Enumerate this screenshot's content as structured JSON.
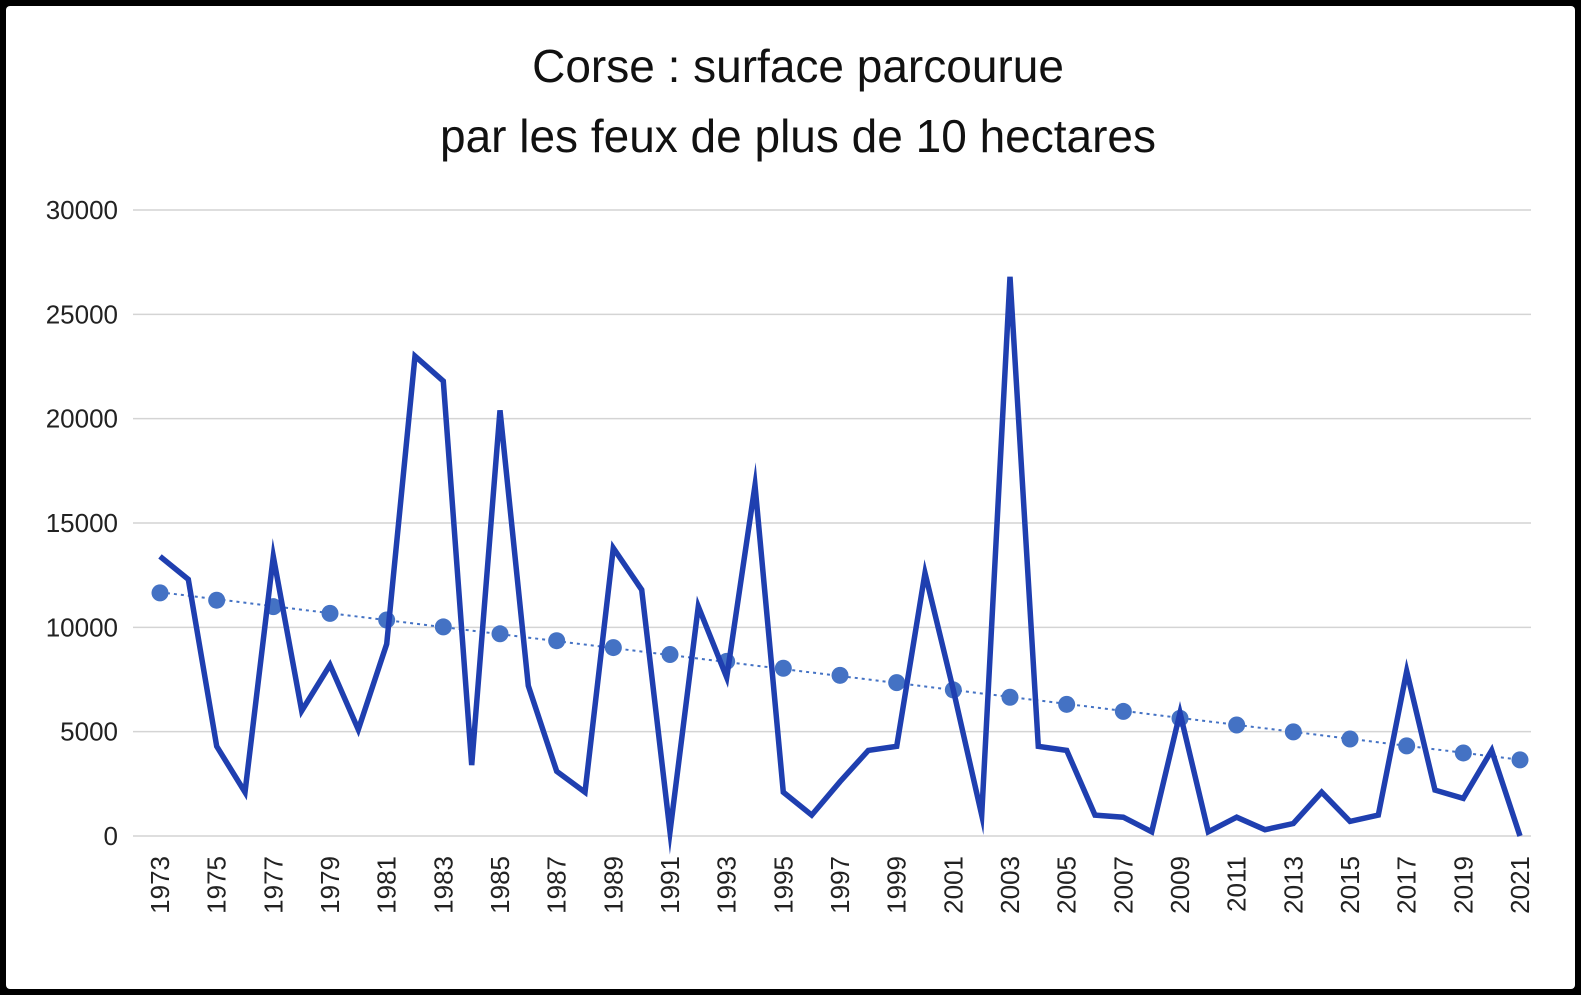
{
  "chart_data": {
    "type": "line",
    "title": [
      "Corse : surface parcourue",
      "par les feux de plus de 10 hectares"
    ],
    "xlabel": "",
    "ylabel": "",
    "ylim": [
      0,
      30000
    ],
    "yticks": [
      0,
      5000,
      10000,
      15000,
      20000,
      25000,
      30000
    ],
    "xtick_labels": [
      "1973",
      "1975",
      "1977",
      "1979",
      "1981",
      "1983",
      "1985",
      "1987",
      "1989",
      "1991",
      "1993",
      "1995",
      "1997",
      "1999",
      "2001",
      "2003",
      "2005",
      "2007",
      "2009",
      "2011",
      "2013",
      "2015",
      "2017",
      "2019",
      "2021"
    ],
    "grid": true,
    "legend": "none",
    "colors": {
      "line": "#1f3fb0",
      "trend": "#4472c4"
    },
    "x": [
      1973,
      1974,
      1975,
      1976,
      1977,
      1978,
      1979,
      1980,
      1981,
      1982,
      1983,
      1984,
      1985,
      1986,
      1987,
      1988,
      1989,
      1990,
      1991,
      1992,
      1993,
      1994,
      1995,
      1996,
      1997,
      1998,
      1999,
      2000,
      2001,
      2002,
      2003,
      2004,
      2005,
      2006,
      2007,
      2008,
      2009,
      2010,
      2011,
      2012,
      2013,
      2014,
      2015,
      2016,
      2017,
      2018,
      2019,
      2020,
      2021
    ],
    "series": [
      {
        "values": [
          13400,
          12300,
          4300,
          2100,
          13400,
          6000,
          8200,
          5100,
          9200,
          23000,
          21800,
          3400,
          20400,
          7200,
          3100,
          2100,
          13800,
          11800,
          200,
          11000,
          7600,
          16800,
          2100,
          1000,
          2600,
          4100,
          4300,
          12600,
          7000,
          1000,
          26800,
          4300,
          4100,
          1000,
          900,
          200,
          5900,
          200,
          900,
          300,
          600,
          2100,
          700,
          1000,
          7900,
          2200,
          1800,
          4100,
          0
        ]
      }
    ],
    "trend": {
      "x": [
        1973,
        1975,
        1977,
        1979,
        1981,
        1983,
        1985,
        1987,
        1989,
        1991,
        1993,
        1995,
        1997,
        1999,
        2001,
        2003,
        2005,
        2007,
        2009,
        2011,
        2013,
        2015,
        2017,
        2019,
        2021
      ],
      "values": [
        11650,
        11300,
        10990,
        10670,
        10350,
        10020,
        9690,
        9360,
        9030,
        8700,
        8370,
        8040,
        7700,
        7350,
        7000,
        6650,
        6310,
        5970,
        5640,
        5320,
        4990,
        4650,
        4320,
        3980,
        3650
      ]
    }
  }
}
